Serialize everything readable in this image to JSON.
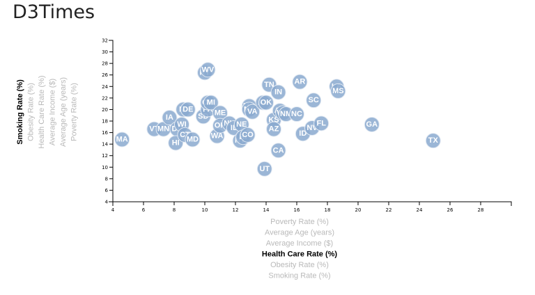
{
  "page": {
    "title": "D3Times"
  },
  "chart_data": {
    "type": "scatter",
    "x_label": "Health Care Rate (%)",
    "y_label": "Smoking Rate (%)",
    "xlim": [
      4,
      30
    ],
    "ylim": [
      4,
      32
    ],
    "x_ticks": [
      4,
      6,
      8,
      10,
      12,
      14,
      16,
      18,
      20,
      22,
      24,
      26,
      28
    ],
    "y_ticks": [
      4,
      6,
      8,
      10,
      12,
      14,
      16,
      18,
      20,
      22,
      24,
      26,
      28,
      30,
      32
    ],
    "x_axis_options": [
      {
        "label": "Poverty Rate (%)",
        "active": false
      },
      {
        "label": "Average Age (years)",
        "active": false
      },
      {
        "label": "Average Income ($)",
        "active": false
      },
      {
        "label": "Health Care Rate (%)",
        "active": true
      },
      {
        "label": "Obesity Rate (%)",
        "active": false
      },
      {
        "label": "Smoking Rate (%)",
        "active": false
      }
    ],
    "y_axis_options": [
      {
        "label": "Smoking Rate (%)",
        "active": true
      },
      {
        "label": "Obesity Rate (%)",
        "active": false
      },
      {
        "label": "Health Care Rate (%)",
        "active": false
      },
      {
        "label": "Average Income ($)",
        "active": false
      },
      {
        "label": "Average Age (years)",
        "active": false
      },
      {
        "label": "Poverty Rate (%)",
        "active": false
      }
    ],
    "points": [
      {
        "abbr": "MA",
        "x": 4.6,
        "y": 14.8
      },
      {
        "abbr": "VT",
        "x": 6.7,
        "y": 16.6
      },
      {
        "abbr": "MN",
        "x": 7.3,
        "y": 16.6
      },
      {
        "abbr": "IA",
        "x": 7.7,
        "y": 18.6
      },
      {
        "abbr": "DC",
        "x": 8.2,
        "y": 16.6
      },
      {
        "abbr": "HI",
        "x": 8.1,
        "y": 14.2
      },
      {
        "abbr": "WI",
        "x": 8.5,
        "y": 17.4
      },
      {
        "abbr": "CT",
        "x": 8.7,
        "y": 15.6
      },
      {
        "abbr": "MI",
        "x": 8.6,
        "y": 20.0
      },
      {
        "abbr": "DE",
        "x": 8.9,
        "y": 20.0
      },
      {
        "abbr": "MD",
        "x": 9.2,
        "y": 14.8
      },
      {
        "abbr": "SD",
        "x": 9.9,
        "y": 18.8
      },
      {
        "abbr": "PA",
        "x": 10.2,
        "y": 20.0
      },
      {
        "abbr": "KY",
        "x": 10.0,
        "y": 26.4
      },
      {
        "abbr": "WV",
        "x": 10.2,
        "y": 26.9
      },
      {
        "abbr": "OH",
        "x": 10.2,
        "y": 21.2
      },
      {
        "abbr": "MI",
        "x": 10.4,
        "y": 21.2
      },
      {
        "abbr": "ME",
        "x": 11.0,
        "y": 19.4
      },
      {
        "abbr": "WA",
        "x": 10.8,
        "y": 15.4
      },
      {
        "abbr": "OR",
        "x": 11.0,
        "y": 17.2
      },
      {
        "abbr": "NH",
        "x": 11.6,
        "y": 17.6
      },
      {
        "abbr": "IL",
        "x": 11.9,
        "y": 16.8
      },
      {
        "abbr": "NE",
        "x": 12.4,
        "y": 17.4
      },
      {
        "abbr": "NY",
        "x": 12.3,
        "y": 14.6
      },
      {
        "abbr": "RI",
        "x": 12.5,
        "y": 15.2
      },
      {
        "abbr": "CO",
        "x": 12.8,
        "y": 15.6
      },
      {
        "abbr": "MO",
        "x": 12.9,
        "y": 20.6
      },
      {
        "abbr": "MT",
        "x": 12.9,
        "y": 20.0
      },
      {
        "abbr": "VA",
        "x": 13.1,
        "y": 19.6
      },
      {
        "abbr": "AL",
        "x": 13.8,
        "y": 21.2
      },
      {
        "abbr": "OK",
        "x": 14.0,
        "y": 21.2
      },
      {
        "abbr": "UT",
        "x": 13.9,
        "y": 9.7
      },
      {
        "abbr": "TN",
        "x": 14.2,
        "y": 24.3
      },
      {
        "abbr": "KS",
        "x": 14.5,
        "y": 18.2
      },
      {
        "abbr": "AZ",
        "x": 14.5,
        "y": 16.6
      },
      {
        "abbr": "IN",
        "x": 14.8,
        "y": 23.0
      },
      {
        "abbr": "CA",
        "x": 14.8,
        "y": 12.9
      },
      {
        "abbr": "AK",
        "x": 14.9,
        "y": 19.8
      },
      {
        "abbr": "WY",
        "x": 15.1,
        "y": 19.4
      },
      {
        "abbr": "NM",
        "x": 15.3,
        "y": 19.2
      },
      {
        "abbr": "NC",
        "x": 16.0,
        "y": 19.2
      },
      {
        "abbr": "AR",
        "x": 16.2,
        "y": 24.8
      },
      {
        "abbr": "ID",
        "x": 16.4,
        "y": 15.8
      },
      {
        "abbr": "SC",
        "x": 17.1,
        "y": 21.6
      },
      {
        "abbr": "NV",
        "x": 17.0,
        "y": 16.8
      },
      {
        "abbr": "FL",
        "x": 17.6,
        "y": 17.6
      },
      {
        "abbr": "LA",
        "x": 18.6,
        "y": 24.0
      },
      {
        "abbr": "MS",
        "x": 18.7,
        "y": 23.2
      },
      {
        "abbr": "GA",
        "x": 20.9,
        "y": 17.4
      },
      {
        "abbr": "TX",
        "x": 24.9,
        "y": 14.6
      }
    ]
  }
}
